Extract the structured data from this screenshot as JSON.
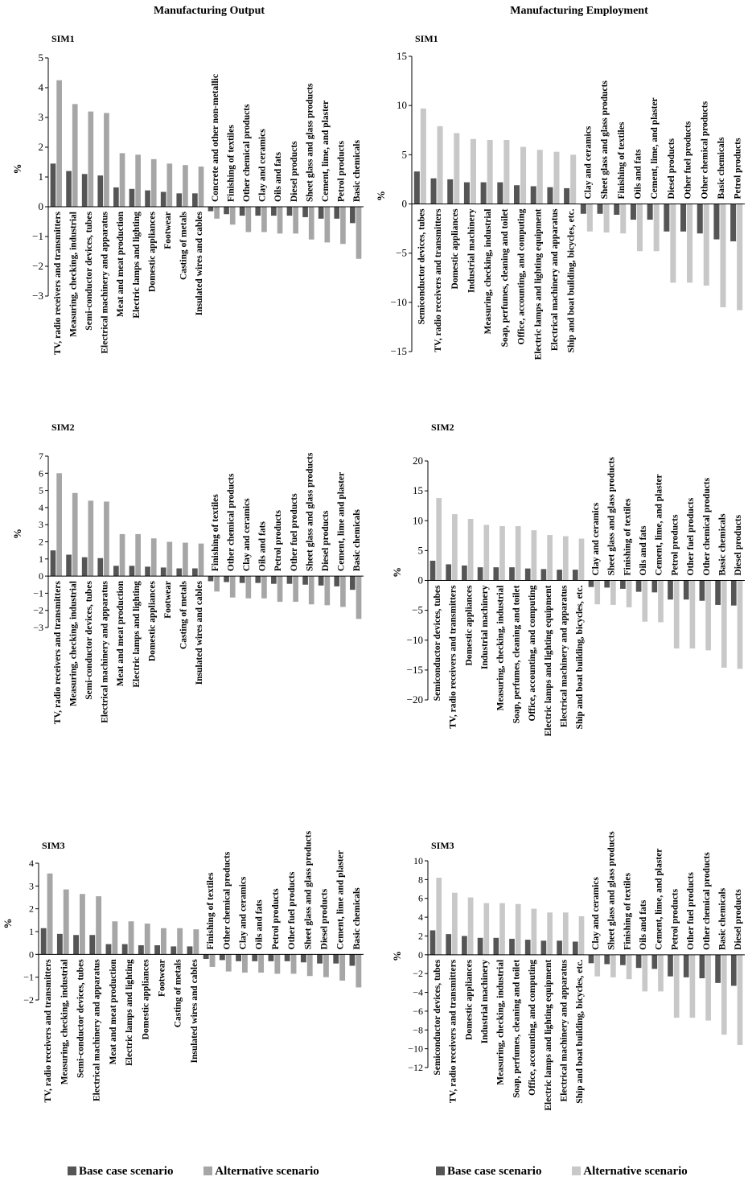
{
  "titles": {
    "left": "Manufacturing Output",
    "right": "Manufacturing Employment"
  },
  "legend": [
    {
      "label": "Base case scenario",
      "color": "#555555"
    },
    {
      "label": "Alternative scenario",
      "color_left": "#a6a6a6",
      "color_right": "#c8c8c8"
    }
  ],
  "chart_data": [
    {
      "type": "bar",
      "panel": "SIM1",
      "column": "Manufacturing Output",
      "ylabel": "%",
      "ylim": [
        -3,
        5
      ],
      "ticks": [
        5,
        4,
        3,
        2,
        1,
        0,
        -1,
        -2,
        -3
      ],
      "categories": [
        "TV, radio receivers and transmitters",
        "Measuring, checking, industrial",
        "Semi-conductor devices, tubes",
        "Electrical machinery and apparatus",
        "Meat and meat production",
        "Electric lamps and lighting",
        "Domestic appliances",
        "Footwear",
        "Casting of metals",
        "Insulated wires and cables",
        "Concrete and other non-metallic",
        "Finishing of textiles",
        "Other chemical products",
        "Clay and ceramics",
        "Oils and fats",
        "Diesel products",
        "Sheet glass and glass products",
        "Cement, lime, and plaster",
        "Petrol products",
        "Basic chemicals"
      ],
      "series": [
        {
          "name": "Base case scenario",
          "values": [
            1.45,
            1.2,
            1.1,
            1.05,
            0.65,
            0.6,
            0.55,
            0.5,
            0.45,
            0.45,
            -0.15,
            -0.25,
            -0.3,
            -0.3,
            -0.3,
            -0.3,
            -0.35,
            -0.4,
            -0.4,
            -0.55
          ]
        },
        {
          "name": "Alternative scenario",
          "values": [
            4.25,
            3.45,
            3.2,
            3.15,
            1.8,
            1.75,
            1.6,
            1.45,
            1.4,
            1.35,
            -0.4,
            -0.6,
            -0.85,
            -0.85,
            -0.9,
            -0.9,
            -1.1,
            -1.2,
            -1.25,
            -1.75
          ]
        }
      ]
    },
    {
      "type": "bar",
      "panel": "SIM1",
      "column": "Manufacturing Employment",
      "ylabel": "%",
      "ylim": [
        -15,
        15
      ],
      "ticks": [
        15,
        10,
        5,
        0,
        -5,
        -10,
        -15
      ],
      "categories": [
        "Semiconductor devices, tubes",
        "TV, radio receivers and transmitters",
        "Domestic appliances",
        "Industrial machinery",
        "Measuring, checking, industrial",
        "Soap, perfumes, cleaning and toilet",
        "Office, accounting, and computing",
        "Electric lamps and lighting equipment",
        "Electrical machinery and apparatus",
        "Ship and boat building, bicycles, etc.",
        "Clay and ceramics",
        "Sheet glass and glass products",
        "Finishing of textiles",
        "Oils and fats",
        "Cement, lime, and plaster",
        "Diesel products",
        "Other fuel products",
        "Other chemical products",
        "Basic chemicals",
        "Petrol products"
      ],
      "series": [
        {
          "name": "Base case scenario",
          "values": [
            3.3,
            2.6,
            2.5,
            2.2,
            2.2,
            2.2,
            1.9,
            1.8,
            1.7,
            1.6,
            -1.0,
            -1.0,
            -1.1,
            -1.6,
            -1.6,
            -2.8,
            -2.8,
            -3.0,
            -3.6,
            -3.8
          ]
        },
        {
          "name": "Alternative scenario",
          "values": [
            9.7,
            7.9,
            7.2,
            6.6,
            6.5,
            6.5,
            5.8,
            5.5,
            5.3,
            5.0,
            -2.8,
            -2.9,
            -3.0,
            -4.8,
            -4.8,
            -8.0,
            -8.0,
            -8.3,
            -10.5,
            -10.8
          ]
        }
      ]
    },
    {
      "type": "bar",
      "panel": "SIM2",
      "column": "Manufacturing Output",
      "ylabel": "%",
      "ylim": [
        -3,
        7
      ],
      "ticks": [
        7,
        6,
        5,
        4,
        3,
        2,
        1,
        0,
        -1,
        -2,
        -3
      ],
      "categories": [
        "TV, radio receivers and transmitters",
        "Measuring, checking, industrial",
        "Semi-conductor devices, tubes",
        "Electrical machinery and apparatus",
        "Meat and meat production",
        "Electric lamps and lighting",
        "Domestic appliances",
        "Footwear",
        "Casting of metals",
        "Insulated wires and cables",
        "Finishing of textiles",
        "Other chemical products",
        "Clay and ceramics",
        "Oils and fats",
        "Petrol products",
        "Other fuel products",
        "Sheet glass and glass products",
        "Diesel products",
        "Cement, lime and plaster",
        "Basic chemicals"
      ],
      "series": [
        {
          "name": "Base case scenario",
          "values": [
            1.5,
            1.25,
            1.1,
            1.05,
            0.6,
            0.6,
            0.55,
            0.5,
            0.45,
            0.45,
            -0.3,
            -0.35,
            -0.4,
            -0.4,
            -0.45,
            -0.45,
            -0.5,
            -0.55,
            -0.6,
            -0.8
          ]
        },
        {
          "name": "Alternative scenario",
          "values": [
            6.0,
            4.85,
            4.4,
            4.35,
            2.45,
            2.45,
            2.2,
            2.0,
            1.95,
            1.9,
            -0.9,
            -1.25,
            -1.3,
            -1.3,
            -1.5,
            -1.5,
            -1.65,
            -1.7,
            -1.8,
            -2.5
          ]
        }
      ]
    },
    {
      "type": "bar",
      "panel": "SIM2",
      "column": "Manufacturing Employment",
      "ylabel": "%",
      "ylim": [
        -20,
        20
      ],
      "ticks": [
        20,
        15,
        10,
        5,
        0,
        -5,
        -10,
        -15,
        -20
      ],
      "categories": [
        "Semiconductor devices, tubes",
        "TV, radio receivers and transmitters",
        "Domestic appliances",
        "Industrial machinery",
        "Measuring, checking, industrial",
        "Soap, perfumes, cleaning and toilet",
        "Office, accounting, and computing",
        "Electric lamps and lighting equipment",
        "Electrical machinery and apparatus",
        "Ship and boat building, bicycles, etc.",
        "Clay and ceramics",
        "Sheet glass and glass products",
        "Finishing of textiles",
        "Oils and fats",
        "Cement, lime, and plaster",
        "Petrol products",
        "Other fuel products",
        "Other chemical products",
        "Basic chemicals",
        "Diesel products"
      ],
      "series": [
        {
          "name": "Base case scenario",
          "values": [
            3.3,
            2.7,
            2.5,
            2.2,
            2.2,
            2.2,
            2.0,
            1.9,
            1.8,
            1.8,
            -1.1,
            -1.2,
            -1.4,
            -1.9,
            -2.0,
            -3.2,
            -3.2,
            -3.4,
            -4.1,
            -4.2
          ]
        },
        {
          "name": "Alternative scenario",
          "values": [
            13.8,
            11.1,
            10.3,
            9.3,
            9.1,
            9.1,
            8.4,
            7.6,
            7.4,
            7.0,
            -4.0,
            -4.1,
            -4.5,
            -6.9,
            -7.0,
            -11.4,
            -11.4,
            -11.7,
            -14.6,
            -14.8
          ]
        }
      ]
    },
    {
      "type": "bar",
      "panel": "SIM3",
      "column": "Manufacturing Output",
      "ylabel": "%",
      "ylim": [
        -2,
        4
      ],
      "ticks": [
        4,
        3,
        2,
        1,
        0,
        -1,
        -2
      ],
      "categories": [
        "TV, radio receivers and transmitters",
        "Measuring, checking, industrial",
        "Semi-conductor devices, tubes",
        "Electrical machinery and apparatus",
        "Meat and meat production",
        "Electric lamps and lighting",
        "Domestic appliances",
        "Footwear",
        "Casting of metals",
        "Insulated wires and cables",
        "Finishing of textiles",
        "Other chemical products",
        "Clay and ceramics",
        "Oils and fats",
        "Petrol products",
        "Other fuel products",
        "Sheet glass and glass products",
        "Diesel products",
        "Cement, lime and plaster",
        "Basic chemicals"
      ],
      "series": [
        {
          "name": "Base case scenario",
          "values": [
            1.15,
            0.9,
            0.85,
            0.85,
            0.45,
            0.45,
            0.4,
            0.4,
            0.35,
            0.35,
            -0.2,
            -0.25,
            -0.3,
            -0.3,
            -0.3,
            -0.3,
            -0.35,
            -0.4,
            -0.4,
            -0.5
          ]
        },
        {
          "name": "Alternative scenario",
          "values": [
            3.55,
            2.85,
            2.65,
            2.55,
            1.45,
            1.45,
            1.35,
            1.15,
            1.15,
            1.1,
            -0.55,
            -0.75,
            -0.8,
            -0.8,
            -0.85,
            -0.85,
            -0.95,
            -1.0,
            -1.15,
            -1.45
          ]
        }
      ]
    },
    {
      "type": "bar",
      "panel": "SIM3",
      "column": "Manufacturing Employment",
      "ylabel": "%",
      "ylim": [
        -12,
        10
      ],
      "ticks": [
        10,
        8,
        6,
        4,
        2,
        0,
        -2,
        -4,
        -6,
        -8,
        -10,
        -12
      ],
      "categories": [
        "Semiconductor devices, tubes",
        "TV, radio receivers and transmitters",
        "Domestic appliances",
        "Industrial machinery",
        "Measuring, checking, industrial",
        "Soap, perfumes, cleaning and toilet",
        "Office, accounting, and computing",
        "Electric lamps and lighting equipment",
        "Electrical machinery and apparatus",
        "Ship and boat building, bicycles, etc.",
        "Clay and ceramics",
        "Sheet glass and glass products",
        "Finishing of textiles",
        "Oils and fats",
        "Cement, lime, and plaster",
        "Petrol products",
        "Other fuel products",
        "Other chemical products",
        "Basic chemicals",
        "Diesel products"
      ],
      "series": [
        {
          "name": "Base case scenario",
          "values": [
            2.6,
            2.2,
            2.0,
            1.8,
            1.8,
            1.7,
            1.6,
            1.5,
            1.5,
            1.4,
            -0.9,
            -1.0,
            -1.1,
            -1.4,
            -1.5,
            -2.3,
            -2.4,
            -2.5,
            -3.0,
            -3.3
          ]
        },
        {
          "name": "Alternative scenario",
          "values": [
            8.2,
            6.6,
            6.1,
            5.5,
            5.5,
            5.4,
            4.9,
            4.5,
            4.5,
            4.1,
            -2.3,
            -2.4,
            -2.6,
            -3.9,
            -3.9,
            -6.7,
            -6.7,
            -7.0,
            -8.5,
            -9.6
          ]
        }
      ]
    }
  ]
}
